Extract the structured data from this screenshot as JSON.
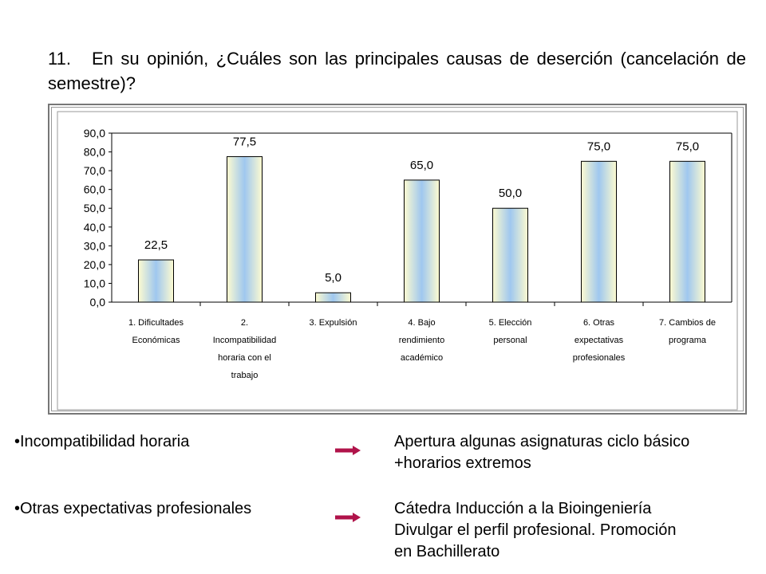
{
  "question": {
    "number": "11.",
    "text": "En su opinión, ¿Cuáles son las principales causas de deserción (cancelación de semestre)?"
  },
  "chart_data": {
    "type": "bar",
    "categories": [
      [
        "1.  Dificultades",
        "Económicas"
      ],
      [
        "2.",
        "Incompatibilidad",
        "horaria con el",
        "trabajo"
      ],
      [
        "3.  Expulsión"
      ],
      [
        "4.  Bajo",
        "rendimiento",
        "académico"
      ],
      [
        "5.  Elección",
        "personal"
      ],
      [
        "6.  Otras",
        "expectativas",
        "profesionales"
      ],
      [
        "7.  Cambios de",
        "programa"
      ]
    ],
    "values": [
      22.5,
      77.5,
      5.0,
      65.0,
      50.0,
      75.0,
      75.0
    ],
    "data_labels": [
      "22,5",
      "77,5",
      "5,0",
      "65,0",
      "50,0",
      "75,0",
      "75,0"
    ],
    "y_ticks": [
      "0,0",
      "10,0",
      "20,0",
      "30,0",
      "40,0",
      "50,0",
      "60,0",
      "70,0",
      "80,0",
      "90,0"
    ],
    "ylim": [
      0,
      90
    ],
    "grid": false,
    "legend": "none",
    "bar_fill": [
      "#fdfbd0",
      "#9fc7ef",
      "#fdfbd0"
    ]
  },
  "notes": [
    {
      "cause": "•Incompatibilidad horaria",
      "action_lines": [
        "Apertura algunas asignaturas ciclo básico",
        "+horarios extremos"
      ]
    },
    {
      "cause": "•Otras expectativas profesionales",
      "action_lines": [
        "Cátedra Inducción a la Bioingeniería",
        "Divulgar el perfil profesional.  Promoción",
        "en Bachillerato"
      ]
    }
  ],
  "arrow_color": "#b0134a"
}
